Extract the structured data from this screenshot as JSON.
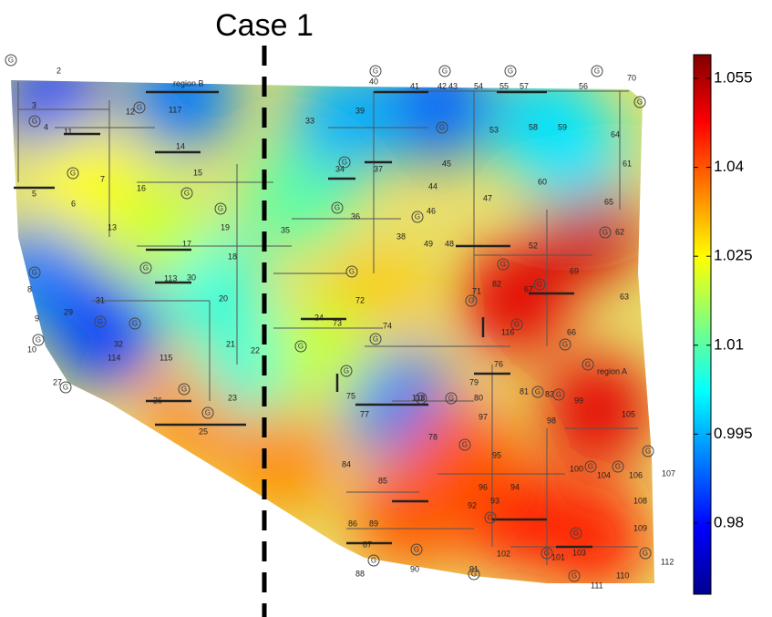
{
  "chart_data": {
    "type": "contour-map",
    "title": "Case 1",
    "region_labels": [
      "region B",
      "region A"
    ],
    "generator_label": "G",
    "bus_labels": [
      "2",
      "3",
      "4",
      "5",
      "6",
      "7",
      "8",
      "9",
      "10",
      "11",
      "12",
      "13",
      "14",
      "15",
      "16",
      "17",
      "18",
      "19",
      "20",
      "21",
      "22",
      "23",
      "24",
      "25",
      "26",
      "27",
      "29",
      "30",
      "31",
      "32",
      "33",
      "34",
      "35",
      "36",
      "37",
      "38",
      "39",
      "40",
      "41",
      "42",
      "43",
      "44",
      "45",
      "46",
      "47",
      "48",
      "49",
      "52",
      "53",
      "54",
      "55",
      "56",
      "57",
      "58",
      "59",
      "60",
      "61",
      "62",
      "63",
      "64",
      "65",
      "66",
      "67",
      "69",
      "70",
      "71",
      "72",
      "73",
      "74",
      "75",
      "76",
      "77",
      "78",
      "79",
      "80",
      "81",
      "82",
      "83",
      "84",
      "85",
      "86",
      "87",
      "88",
      "89",
      "90",
      "91",
      "92",
      "93",
      "94",
      "95",
      "96",
      "97",
      "98",
      "99",
      "100",
      "101",
      "102",
      "103",
      "104",
      "105",
      "106",
      "107",
      "108",
      "109",
      "110",
      "111",
      "112",
      "113",
      "114",
      "115",
      "116",
      "117",
      "118"
    ],
    "field_values": [
      0.985,
      0.99,
      0.988,
      0.998,
      0.99,
      0.985,
      1.004,
      1.01,
      1.02,
      1.03,
      1.05,
      1.052,
      1.05,
      1.045,
      0.99,
      1.035,
      1.035,
      1.04,
      1.005,
      1.04,
      1.02,
      1.0,
      1.045,
      0.995,
      1.025
    ],
    "colormap": "jet",
    "clim": [
      0.968,
      1.059
    ],
    "colorbar_ticks": [
      1.055,
      1.04,
      1.025,
      1.01,
      0.995,
      0.98
    ],
    "divider_style": "dashed"
  }
}
